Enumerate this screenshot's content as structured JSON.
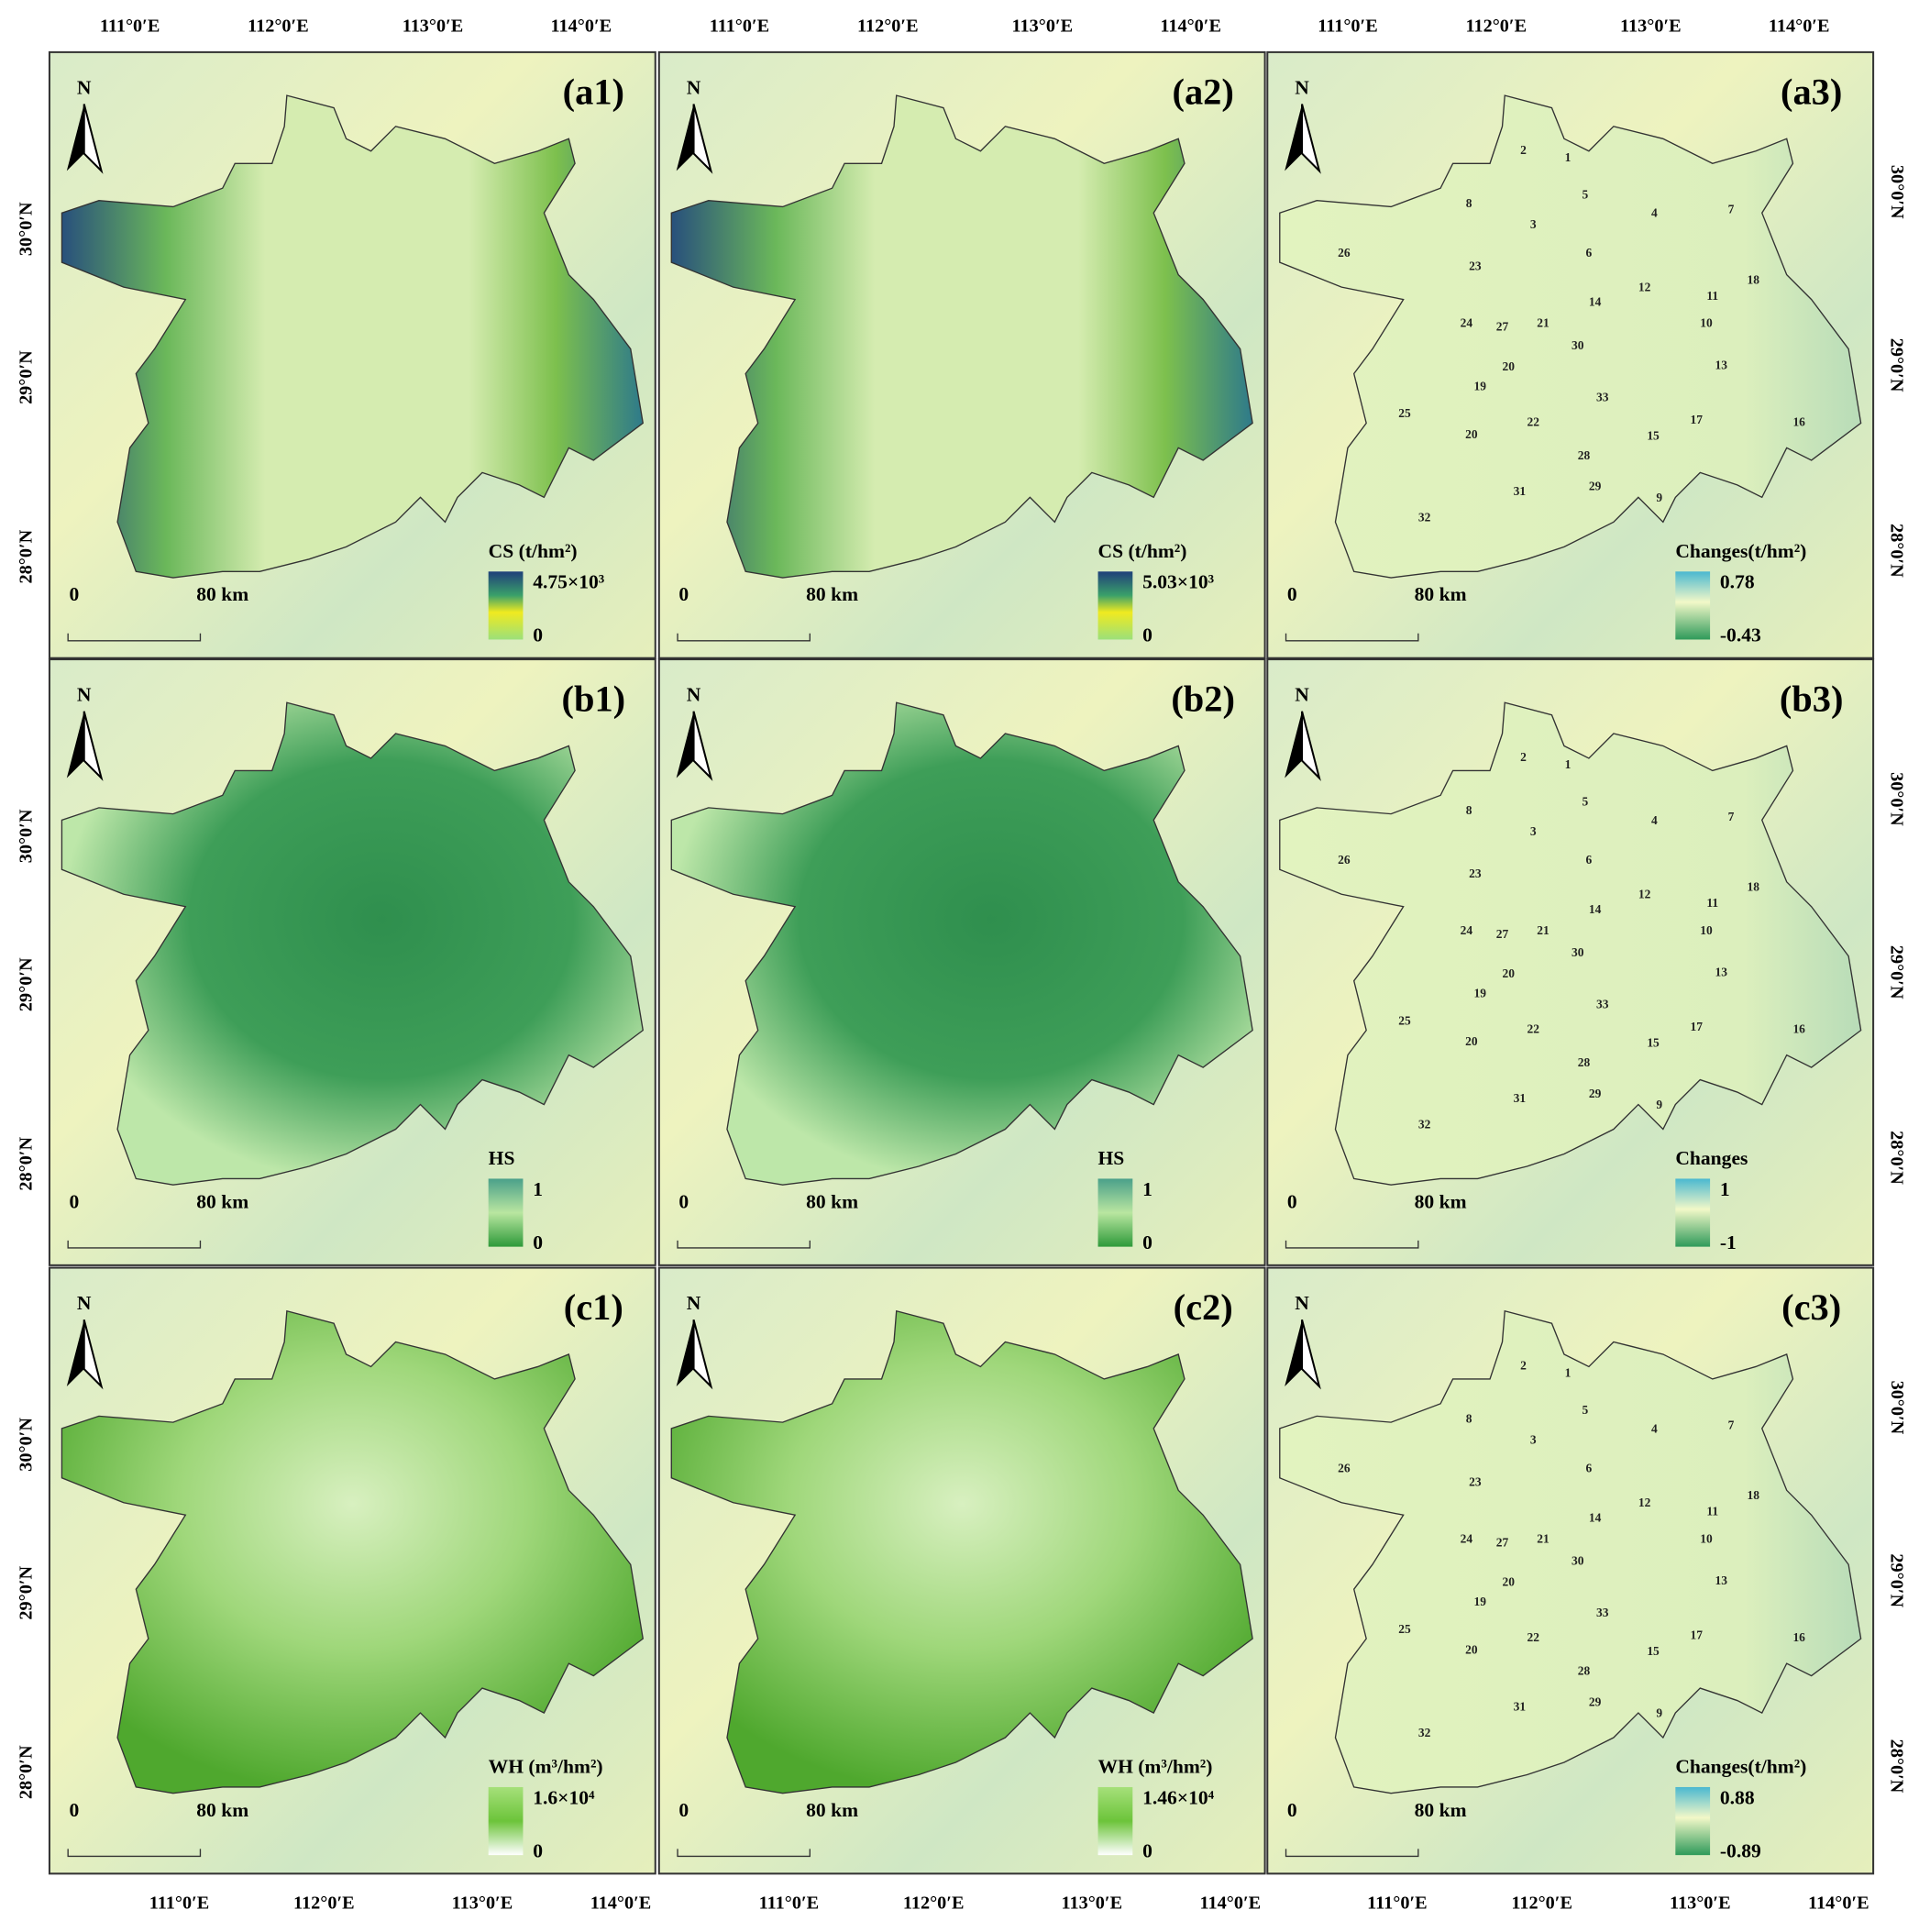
{
  "north": "N",
  "scale_bar": {
    "start": "0",
    "end": "80 km"
  },
  "lon_labels": [
    "111°0′E",
    "112°0′E",
    "113°0′E",
    "114°0′E"
  ],
  "lat_labels": [
    "30°0′N",
    "29°0′N",
    "28°0′N"
  ],
  "districts": [
    "2",
    "1",
    "8",
    "5",
    "3",
    "4",
    "7",
    "26",
    "23",
    "6",
    "12",
    "11",
    "18",
    "14",
    "24",
    "27",
    "21",
    "10",
    "30",
    "20",
    "13",
    "19",
    "33",
    "25",
    "17",
    "16",
    "22",
    "20",
    "15",
    "28",
    "29",
    "31",
    "9",
    "32"
  ],
  "panels": [
    {
      "label": "(a1)",
      "legend_title": "CS (t/hm²)",
      "legend_max": "4.75×10³",
      "legend_min": "0"
    },
    {
      "label": "(a2)",
      "legend_title": "CS (t/hm²)",
      "legend_max": "5.03×10³",
      "legend_min": "0"
    },
    {
      "label": "(a3)",
      "legend_title": "Changes(t/hm²)",
      "legend_max": "0.78",
      "legend_min": "-0.43"
    },
    {
      "label": "(b1)",
      "legend_title": "HS",
      "legend_max": "1",
      "legend_min": "0"
    },
    {
      "label": "(b2)",
      "legend_title": "HS",
      "legend_max": "1",
      "legend_min": "0"
    },
    {
      "label": "(b3)",
      "legend_title": "Changes",
      "legend_max": "1",
      "legend_min": "-1"
    },
    {
      "label": "(c1)",
      "legend_title": "WH (m³/hm²)",
      "legend_max": "1.6×10⁴",
      "legend_min": "0"
    },
    {
      "label": "(c2)",
      "legend_title": "WH (m³/hm²)",
      "legend_max": "1.46×10⁴",
      "legend_min": "0"
    },
    {
      "label": "(c3)",
      "legend_title": "Changes(t/hm²)",
      "legend_max": "0.88",
      "legend_min": "-0.89"
    }
  ]
}
